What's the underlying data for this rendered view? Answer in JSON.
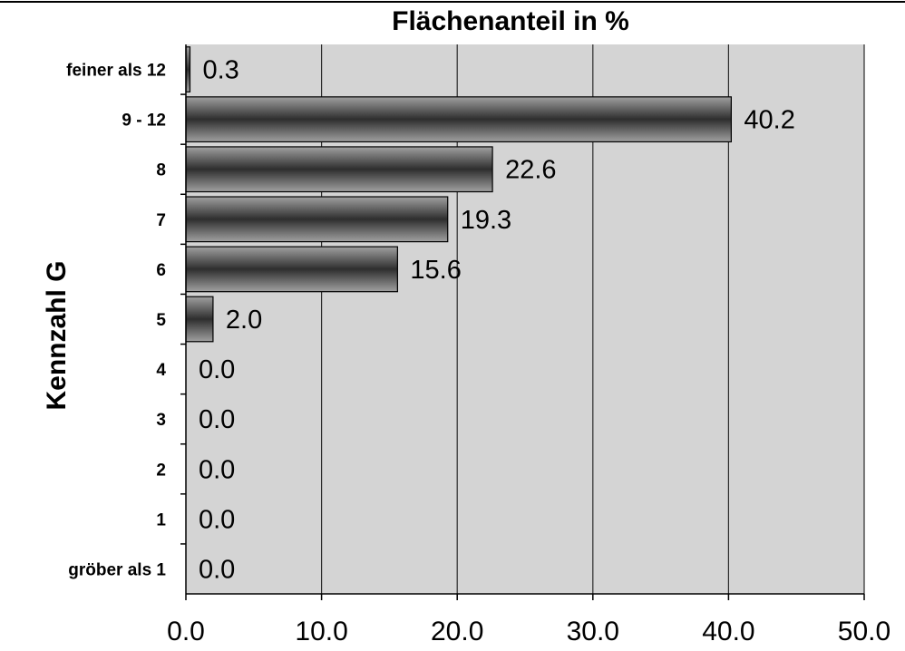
{
  "chart_data": {
    "type": "bar",
    "orientation": "horizontal",
    "title": "Flächenanteil in %",
    "ylabel": "Kennzahl G",
    "xlabel": "",
    "categories": [
      "feiner als 12",
      "9  - 12",
      "8",
      "7",
      "6",
      "5",
      "4",
      "3",
      "2",
      "1",
      "gröber als 1"
    ],
    "values": [
      0.3,
      40.2,
      22.6,
      19.3,
      15.6,
      2.0,
      0.0,
      0.0,
      0.0,
      0.0,
      0.0
    ],
    "value_labels": [
      "0.3",
      "40.2",
      "22.6",
      "19.3",
      "15.6",
      "2.0",
      "0.0",
      "0.0",
      "0.0",
      "0.0",
      "0.0"
    ],
    "xlim": [
      0,
      50
    ],
    "xticks": [
      "0.0",
      "10.0",
      "20.0",
      "30.0",
      "40.0",
      "50.0"
    ],
    "grid": "vertical",
    "legend": "none",
    "colors": {
      "plot_background": "#d4d4d4",
      "bar_dark": "#2e2e2e",
      "bar_light": "#9a9a9a"
    }
  }
}
